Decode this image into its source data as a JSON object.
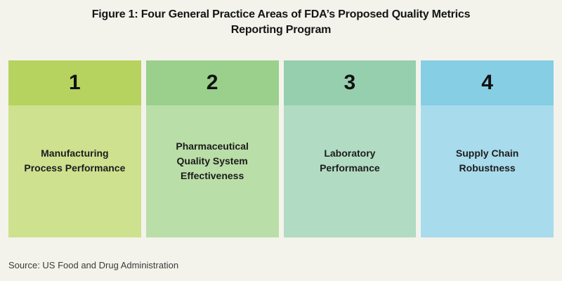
{
  "title": "Figure 1: Four General Practice Areas of FDA’s Proposed Quality Metrics\nReporting Program",
  "source": "Source: US Food and Drug Administration",
  "colors": {
    "background": "#f3f3ec",
    "title_text": "#141414",
    "label_text": "#1c1c1c"
  },
  "columns": [
    {
      "number": "1",
      "label": "Manufacturing\nProcess Performance",
      "header_color": "#b6d35f",
      "body_color": "#cde18f"
    },
    {
      "number": "2",
      "label": "Pharmaceutical\nQuality System\nEffectiveness",
      "header_color": "#9ad08c",
      "body_color": "#badea7"
    },
    {
      "number": "3",
      "label": "Laboratory\nPerformance",
      "header_color": "#96cfae",
      "body_color": "#b1dbc2"
    },
    {
      "number": "4",
      "label": "Supply Chain\nRobustness",
      "header_color": "#85cee4",
      "body_color": "#a8dbec"
    }
  ]
}
